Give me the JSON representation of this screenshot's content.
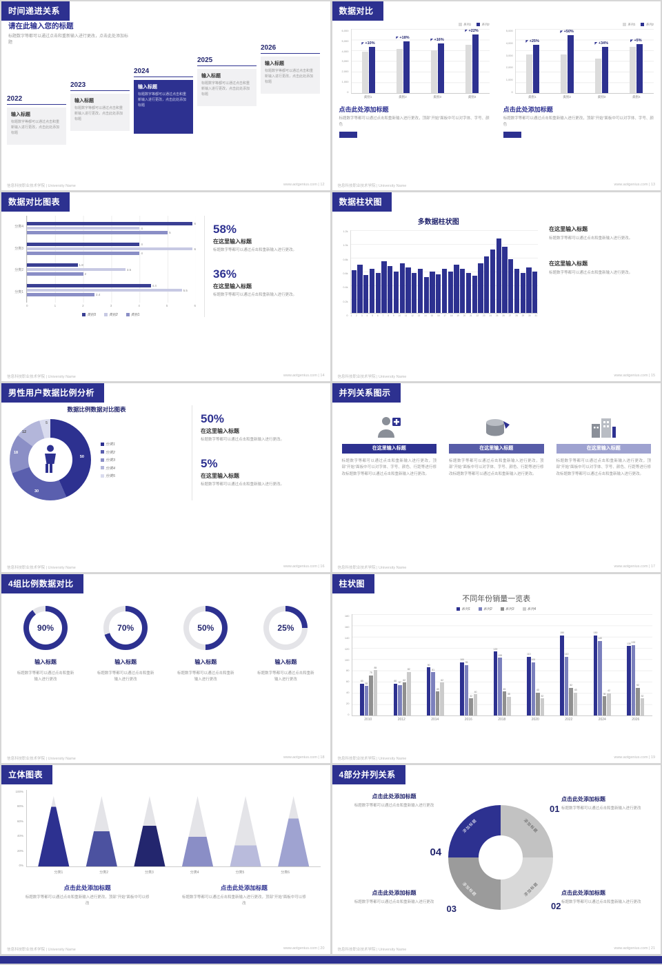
{
  "page": {
    "accent": "#2d3190",
    "footer_left": "信息科技职业技术学院 | University Name"
  },
  "common": {
    "body": "标题数字等都可以通过点击和重新输入进行更改，点击此处添加标题",
    "body_dot": "标题数字等都可以通过点击和重新输入进行更改。",
    "body_plain": "标题数字等都可以通过点击和重新输入进行更改",
    "body_font": "标题数字等都可以通过点击和重新输入进行更改，顶部“开始”面板中可以对字体、字号、颜色",
    "body_font_long": "标题数字等都可以通过点击和重新输入进行更改，顶部“开始”面板中可以对字体、字号、颜色、行距等进行修改标题数字等都可以通过点击和重新输入进行更改。",
    "body_modify": "标题数字等都可以通过点击和重新输入进行更改，顶部“开始”面板中可以修改",
    "input_title": "输入标题",
    "here_title": "在这里输入标题",
    "click_title": "点击此处添加标题",
    "add_title": "添加标题"
  },
  "slides": {
    "s12": {
      "title": "时间递进关系",
      "footer_right": "www.aotgenius.com | 12",
      "heading": "请在此输入您的标题",
      "items": [
        {
          "year": "2022"
        },
        {
          "year": "2023"
        },
        {
          "year": "2024"
        },
        {
          "year": "2025"
        },
        {
          "year": "2026"
        }
      ]
    },
    "s13": {
      "title": "数据对比",
      "footer_right": "www.aotgenius.com | 13",
      "charts": [
        {
          "legend": [
            {
              "label": "系列1",
              "color": "#d9d9d9"
            },
            {
              "label": "系列2",
              "color": "#2d3190"
            }
          ],
          "yticks": [
            "6,000",
            "5,000",
            "4,000",
            "3,000",
            "2,000",
            "1,000",
            "0"
          ],
          "max": 6000,
          "groups": [
            {
              "label": "类别1",
              "pct": "+10%",
              "base": 3900,
              "value": 4300
            },
            {
              "label": "类别2",
              "pct": "+18%",
              "base": 4100,
              "value": 4850
            },
            {
              "label": "类别3",
              "pct": "+16%",
              "base": 4000,
              "value": 4650
            },
            {
              "label": "类别4",
              "pct": "+22%",
              "base": 4500,
              "value": 5500
            }
          ]
        },
        {
          "legend": [
            {
              "label": "系列1",
              "color": "#d9d9d9"
            },
            {
              "label": "系列2",
              "color": "#2d3190"
            }
          ],
          "yticks": [
            "5,000",
            "4,000",
            "3,000",
            "2,000",
            "1,000",
            "0"
          ],
          "max": 5000,
          "groups": [
            {
              "label": "类别1",
              "pct": "+25%",
              "base": 3000,
              "value": 3750
            },
            {
              "label": "类别2",
              "pct": "+50%",
              "base": 3000,
              "value": 4500
            },
            {
              "label": "类别3",
              "pct": "+34%",
              "base": 2700,
              "value": 3600
            },
            {
              "label": "类别4",
              "pct": "+5%",
              "base": 3600,
              "value": 3800
            }
          ]
        }
      ]
    },
    "s14": {
      "title": "数据对比图表",
      "footer_right": "www.aotgenius.com | 14",
      "max": 6,
      "xticks": [
        "0",
        "1",
        "2",
        "3",
        "4",
        "5",
        "6"
      ],
      "legend": [
        {
          "label": "类别3",
          "color": "#3a3f93"
        },
        {
          "label": "类别2",
          "color": "#c7c9e3"
        },
        {
          "label": "类别1",
          "color": "#8a8ec6"
        }
      ],
      "rows": [
        {
          "label": "分类4",
          "bars": [
            6,
            4,
            5
          ]
        },
        {
          "label": "分类3",
          "bars": [
            4,
            6,
            4
          ]
        },
        {
          "label": "分类2",
          "bars": [
            1.8,
            3.5,
            2
          ]
        },
        {
          "label": "分类1",
          "bars": [
            4.4,
            5.5,
            2.4
          ]
        }
      ],
      "stats": [
        {
          "pct": "58%"
        },
        {
          "pct": "36%"
        }
      ]
    },
    "s15": {
      "title": "数据柱状图",
      "footer_right": "www.aotgenius.com | 15",
      "chart_title": "多数据柱状图",
      "yticks": [
        "1.2k",
        "1.0k",
        "0.8k",
        "0.6k",
        "0.4k",
        "0.2k",
        "0"
      ],
      "max": 120,
      "values": [
        62,
        70,
        55,
        64,
        58,
        75,
        68,
        60,
        72,
        66,
        58,
        64,
        52,
        60,
        56,
        64,
        60,
        70,
        64,
        58,
        54,
        72,
        82,
        92,
        108,
        96,
        78,
        64,
        58,
        66,
        60
      ],
      "xlabels": [
        "1",
        "2",
        "3",
        "4",
        "5",
        "6",
        "7",
        "8",
        "9",
        "10",
        "11",
        "12",
        "13",
        "14",
        "15",
        "16",
        "17",
        "18",
        "19",
        "20",
        "21",
        "22",
        "23",
        "24",
        "25",
        "26",
        "27",
        "28",
        "29",
        "30",
        "31"
      ]
    },
    "s16": {
      "title": "男性用户数据比例分析",
      "footer_right": "www.aotgenius.com | 16",
      "chart_title": "数据比例数据对比图表",
      "donut": [
        {
          "label": "分类1",
          "value": 50,
          "color": "#2d3190"
        },
        {
          "label": "分类2",
          "value": 30,
          "color": "#5a5fae"
        },
        {
          "label": "分类3",
          "value": 18,
          "color": "#8b8fc6"
        },
        {
          "label": "分类4",
          "value": 12,
          "color": "#b3b6da"
        },
        {
          "label": "分类5",
          "value": 5,
          "color": "#d9dbee"
        }
      ],
      "stats": [
        {
          "pct": "50%"
        },
        {
          "pct": "5%"
        }
      ]
    },
    "s17": {
      "title": "并列关系图示",
      "footer_right": "www.aotgenius.com | 17",
      "cols": [
        {
          "color": "#2d3190"
        },
        {
          "color": "#575ca8"
        },
        {
          "color": "#9ea2d0"
        }
      ]
    },
    "s18": {
      "title": "4组比例数据对比",
      "footer_right": "www.aotgenius.com | 18",
      "rings": [
        {
          "display": "90%",
          "value": 90
        },
        {
          "display": "70%",
          "value": 70
        },
        {
          "display": "50%",
          "value": 50
        },
        {
          "display": "25%",
          "value": 25
        }
      ]
    },
    "s19": {
      "title": "柱状图",
      "footer_right": "www.aotgenius.com | 19",
      "chart_title": "不同年份销量一览表",
      "legend": [
        {
          "name": "系列1",
          "color": "#2d3190"
        },
        {
          "name": "系列2",
          "color": "#7b80bd"
        },
        {
          "name": "系列3",
          "color": "#8f8f8f"
        },
        {
          "name": "系列4",
          "color": "#cccccc"
        }
      ],
      "yticks": [
        "180",
        "160",
        "140",
        "120",
        "100",
        "80",
        "60",
        "40",
        "20",
        "0"
      ],
      "ymax": 190,
      "years": [
        "2010",
        "2012",
        "2014",
        "2016",
        "2018",
        "2020",
        "2022",
        "2024",
        "2026"
      ],
      "groups": [
        {
          "year": "2010",
          "values": [
            60,
            55,
            75,
            85
          ]
        },
        {
          "year": "2012",
          "values": [
            60,
            57,
            62,
            82
          ]
        },
        {
          "year": "2014",
          "values": [
            90,
            81,
            45,
            62
          ]
        },
        {
          "year": "2016",
          "values": [
            100,
            95,
            32,
            40
          ]
        },
        {
          "year": "2018",
          "values": [
            120,
            108,
            45,
            35
          ]
        },
        {
          "year": "2020",
          "values": [
            110,
            100,
            43,
            32
          ]
        },
        {
          "year": "2022",
          "values": [
            150,
            110,
            52,
            43
          ]
        },
        {
          "year": "2024",
          "values": [
            150,
            140,
            36,
            42
          ]
        },
        {
          "year": "2026",
          "values": [
            130,
            132,
            52,
            32
          ]
        }
      ]
    },
    "s20": {
      "title": "立体图表",
      "footer_right": "www.aotgenius.com | 20",
      "yticks": [
        "100%",
        "80%",
        "60%",
        "40%",
        "20%",
        "0%"
      ],
      "cones": [
        {
          "label": "分类1",
          "value": 85,
          "color": "#2d3190"
        },
        {
          "label": "分类2",
          "value": 50,
          "color": "#4c52a0"
        },
        {
          "label": "分类3",
          "value": 58,
          "color": "#23266e"
        },
        {
          "label": "分类4",
          "value": 42,
          "color": "#8a8ec6"
        },
        {
          "label": "分类5",
          "value": 30,
          "color": "#b9bbdc"
        },
        {
          "label": "分类6",
          "value": 68,
          "color": "#9fa3d1"
        }
      ]
    },
    "s21": {
      "title": "4部分并列关系",
      "footer_right": "www.aotgenius.com | 21",
      "nums": [
        "01",
        "02",
        "03",
        "04"
      ]
    }
  }
}
